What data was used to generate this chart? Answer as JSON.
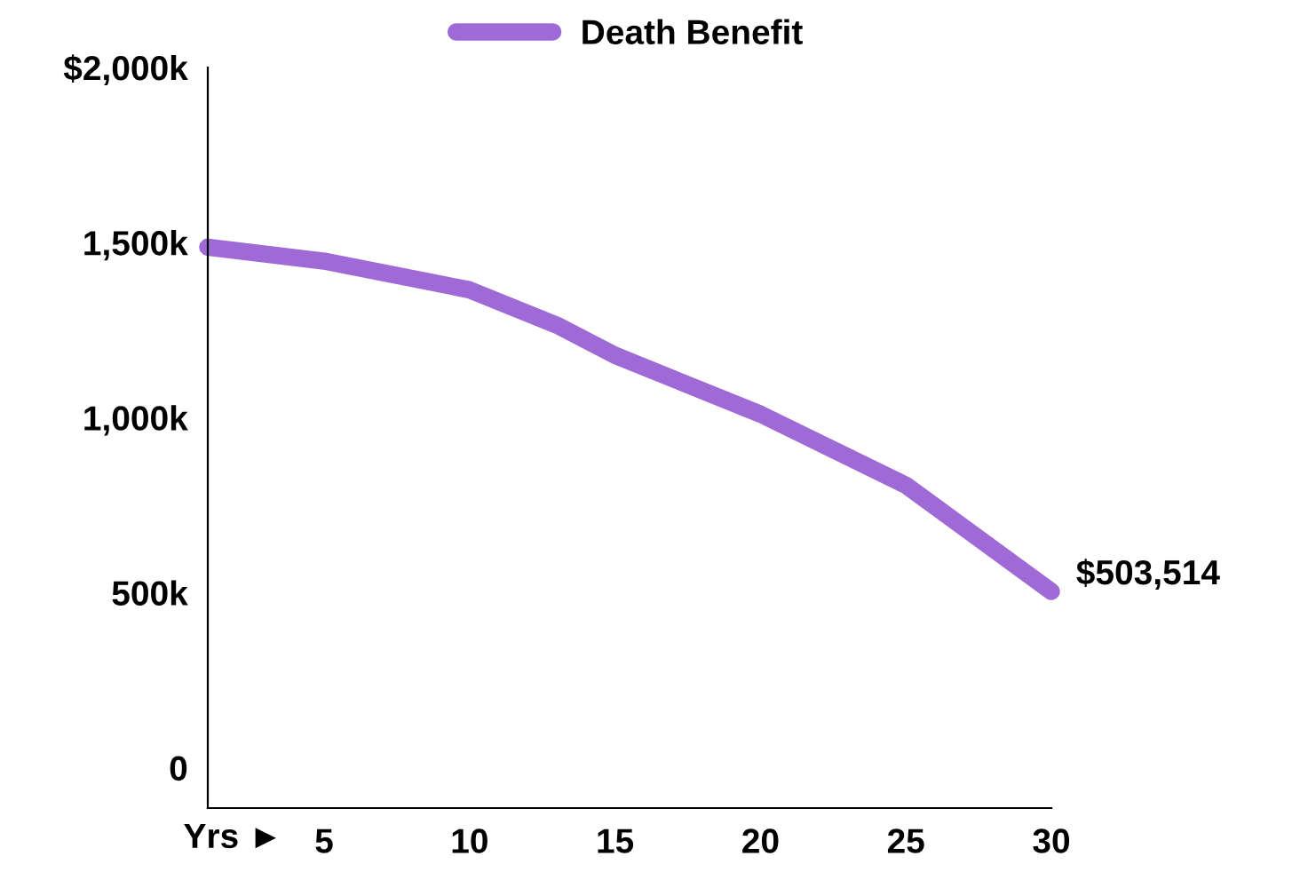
{
  "chart_data": {
    "type": "line",
    "xlabel": "Yrs ►",
    "x": [
      1,
      5,
      10,
      13,
      15,
      20,
      25,
      30
    ],
    "series": [
      {
        "name": "Death Benefit",
        "color": "#a06ad6",
        "values": [
          1487000,
          1447000,
          1365000,
          1264000,
          1178000,
          1010000,
          807000,
          503514
        ]
      }
    ],
    "xlim": [
      1,
      30
    ],
    "xticks": [
      5,
      10,
      15,
      20,
      25,
      30
    ],
    "ylim": [
      -115000,
      2000000
    ],
    "yticks": [
      {
        "value": 0,
        "label": "0"
      },
      {
        "value": 500000,
        "label": "500k"
      },
      {
        "value": 1000000,
        "label": "1,000k"
      },
      {
        "value": 1500000,
        "label": "1,500k"
      },
      {
        "value": 2000000,
        "label": "$2,000k"
      }
    ],
    "annotations": [
      {
        "text": "$503,514",
        "x": 30,
        "y": 503514
      }
    ],
    "grid": false,
    "legend": "top",
    "marker": "none",
    "line_style": "solid"
  }
}
